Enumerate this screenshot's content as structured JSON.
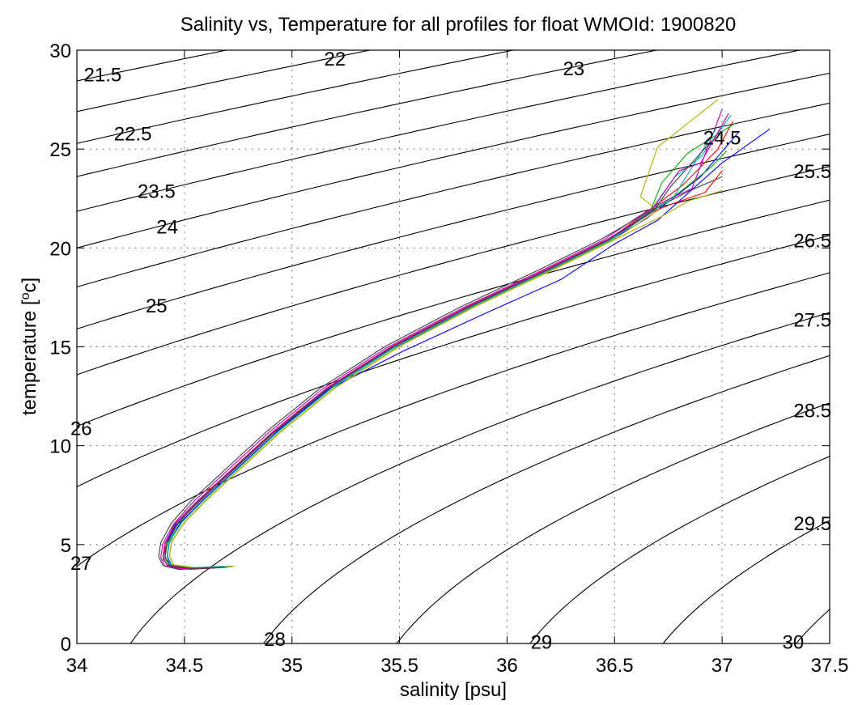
{
  "chart_data": {
    "type": "line",
    "title": "Salinity vs, Temperature for all profiles for float WMOId: 1900820",
    "xlabel": "salinity [psu]",
    "ylabel_base": "temperature [",
    "ylabel_sup": "o",
    "ylabel_tail": "c]",
    "xlim": [
      34,
      37.5
    ],
    "ylim": [
      0,
      30
    ],
    "xticks": [
      34,
      34.5,
      35,
      35.5,
      36,
      36.5,
      37,
      37.5
    ],
    "xtick_labels": [
      "34",
      "34.5",
      "35",
      "35.5",
      "36",
      "36.5",
      "37",
      "37.5"
    ],
    "yticks": [
      0,
      5,
      10,
      15,
      20,
      25,
      30
    ],
    "ytick_labels": [
      "0",
      "5",
      "10",
      "15",
      "20",
      "25",
      "30"
    ],
    "grid": true,
    "legend": "none",
    "density_contours": {
      "levels": [
        21.5,
        22,
        22.5,
        23,
        23.5,
        24,
        24.5,
        25,
        25.5,
        26,
        26.5,
        27,
        27.5,
        28,
        28.5,
        29,
        29.5,
        30
      ],
      "labels": [
        {
          "text": "21.5",
          "s": 34.12,
          "t": 28.8
        },
        {
          "text": "22",
          "s": 35.2,
          "t": 29.6
        },
        {
          "text": "23",
          "s": 36.31,
          "t": 29.1
        },
        {
          "text": "22.5",
          "s": 34.26,
          "t": 25.8
        },
        {
          "text": "24.5",
          "s": 37.0,
          "t": 25.6
        },
        {
          "text": "23.5",
          "s": 34.37,
          "t": 22.9
        },
        {
          "text": "25.5",
          "s": 37.42,
          "t": 23.9
        },
        {
          "text": "24",
          "s": 34.42,
          "t": 21.1
        },
        {
          "text": "26.5",
          "s": 37.42,
          "t": 20.4
        },
        {
          "text": "25",
          "s": 34.37,
          "t": 17.1
        },
        {
          "text": "27.5",
          "s": 37.42,
          "t": 16.4
        },
        {
          "text": "26",
          "s": 34.02,
          "t": 10.9
        },
        {
          "text": "28.5",
          "s": 37.42,
          "t": 11.8
        },
        {
          "text": "29.5",
          "s": 37.42,
          "t": 6.1
        },
        {
          "text": "27",
          "s": 34.02,
          "t": 4.1
        },
        {
          "text": "28",
          "s": 34.92,
          "t": 0.25
        },
        {
          "text": "29",
          "s": 36.16,
          "t": 0.1
        },
        {
          "text": "30",
          "s": 37.33,
          "t": 0.1
        }
      ]
    },
    "series": [
      {
        "color": "#0000ff",
        "points": [
          [
            34.72,
            3.9
          ],
          [
            34.55,
            3.8
          ],
          [
            34.45,
            3.9
          ],
          [
            34.41,
            4.3
          ],
          [
            34.41,
            5.0
          ],
          [
            34.46,
            6.0
          ],
          [
            34.55,
            7.0
          ],
          [
            34.7,
            8.5
          ],
          [
            34.9,
            10.5
          ],
          [
            35.15,
            12.7
          ],
          [
            35.45,
            14.8
          ],
          [
            35.8,
            16.8
          ],
          [
            36.15,
            18.6
          ],
          [
            36.45,
            20.2
          ],
          [
            36.65,
            21.5
          ],
          [
            36.9,
            23.6
          ],
          [
            37.08,
            25.9
          ]
        ]
      },
      {
        "color": "#00b000",
        "points": [
          [
            34.7,
            3.85
          ],
          [
            34.53,
            3.75
          ],
          [
            34.43,
            3.85
          ],
          [
            34.4,
            4.25
          ],
          [
            34.41,
            5.0
          ],
          [
            34.45,
            6.0
          ],
          [
            34.55,
            7.1
          ],
          [
            34.7,
            8.6
          ],
          [
            34.9,
            10.6
          ],
          [
            35.15,
            12.8
          ],
          [
            35.45,
            14.9
          ],
          [
            35.8,
            16.9
          ],
          [
            36.15,
            18.7
          ],
          [
            36.45,
            20.3
          ],
          [
            36.65,
            21.7
          ],
          [
            36.8,
            22.8
          ],
          [
            36.95,
            24.1
          ],
          [
            37.02,
            24.9
          ]
        ]
      },
      {
        "color": "#ff0000",
        "points": [
          [
            34.66,
            3.85
          ],
          [
            34.5,
            3.78
          ],
          [
            34.42,
            3.95
          ],
          [
            34.4,
            4.4
          ],
          [
            34.42,
            5.1
          ],
          [
            34.47,
            6.1
          ],
          [
            34.57,
            7.2
          ],
          [
            34.72,
            8.7
          ],
          [
            34.92,
            10.7
          ],
          [
            35.17,
            12.9
          ],
          [
            35.47,
            15.0
          ],
          [
            35.82,
            17.0
          ],
          [
            36.17,
            18.8
          ],
          [
            36.47,
            20.4
          ],
          [
            36.66,
            21.9
          ],
          [
            36.82,
            23.2
          ],
          [
            36.98,
            25.0
          ],
          [
            37.05,
            26.4
          ]
        ]
      },
      {
        "color": "#00b0b0",
        "points": [
          [
            34.68,
            3.9
          ],
          [
            34.52,
            3.82
          ],
          [
            34.43,
            4.0
          ],
          [
            34.42,
            4.5
          ],
          [
            34.43,
            5.2
          ],
          [
            34.49,
            6.2
          ],
          [
            34.59,
            7.3
          ],
          [
            34.74,
            8.8
          ],
          [
            34.94,
            10.8
          ],
          [
            35.19,
            13.0
          ],
          [
            35.49,
            15.1
          ],
          [
            35.84,
            17.1
          ],
          [
            36.19,
            18.9
          ],
          [
            36.49,
            20.5
          ],
          [
            36.68,
            22.0
          ],
          [
            36.78,
            23.6
          ],
          [
            36.9,
            24.6
          ],
          [
            37.04,
            26.7
          ]
        ]
      },
      {
        "color": "#c000c0",
        "points": [
          [
            34.64,
            3.82
          ],
          [
            34.49,
            3.76
          ],
          [
            34.41,
            3.9
          ],
          [
            34.39,
            4.35
          ],
          [
            34.4,
            5.05
          ],
          [
            34.45,
            6.05
          ],
          [
            34.54,
            7.15
          ],
          [
            34.69,
            8.65
          ],
          [
            34.89,
            10.65
          ],
          [
            35.14,
            12.85
          ],
          [
            35.44,
            14.95
          ],
          [
            35.79,
            16.95
          ],
          [
            36.14,
            18.75
          ],
          [
            36.44,
            20.35
          ],
          [
            36.64,
            21.8
          ],
          [
            36.74,
            22.4
          ],
          [
            36.86,
            23.0
          ],
          [
            37.0,
            27.0
          ]
        ]
      },
      {
        "color": "#b0b000",
        "points": [
          [
            34.73,
            3.9
          ],
          [
            34.56,
            3.83
          ],
          [
            34.45,
            3.98
          ],
          [
            34.43,
            4.45
          ],
          [
            34.44,
            5.15
          ],
          [
            34.5,
            6.15
          ],
          [
            34.6,
            7.25
          ],
          [
            34.75,
            8.75
          ],
          [
            34.95,
            10.75
          ],
          [
            35.2,
            12.95
          ],
          [
            35.5,
            15.05
          ],
          [
            35.85,
            17.05
          ],
          [
            36.2,
            18.85
          ],
          [
            36.5,
            20.45
          ],
          [
            36.7,
            21.9
          ],
          [
            36.62,
            22.6
          ],
          [
            36.7,
            25.1
          ],
          [
            36.98,
            27.5
          ]
        ]
      },
      {
        "color": "#404040",
        "points": [
          [
            34.62,
            3.8
          ],
          [
            34.47,
            3.75
          ],
          [
            34.4,
            3.95
          ],
          [
            34.38,
            4.4
          ],
          [
            34.39,
            5.1
          ],
          [
            34.44,
            6.1
          ],
          [
            34.53,
            7.2
          ],
          [
            34.68,
            8.7
          ],
          [
            34.88,
            10.7
          ],
          [
            35.13,
            12.9
          ],
          [
            35.43,
            15.0
          ],
          [
            35.78,
            17.0
          ],
          [
            36.13,
            18.8
          ],
          [
            36.43,
            20.4
          ],
          [
            36.62,
            21.6
          ],
          [
            36.85,
            22.9
          ],
          [
            37.0,
            23.6
          ]
        ]
      },
      {
        "color": "#0000ff",
        "points": [
          [
            34.7,
            3.88
          ],
          [
            34.54,
            3.8
          ],
          [
            34.44,
            3.95
          ],
          [
            34.42,
            4.4
          ],
          [
            34.43,
            5.1
          ],
          [
            34.48,
            6.1
          ],
          [
            34.58,
            7.2
          ],
          [
            34.73,
            8.7
          ],
          [
            34.93,
            10.7
          ],
          [
            35.18,
            12.9
          ],
          [
            35.52,
            14.8
          ],
          [
            35.9,
            16.7
          ],
          [
            36.25,
            18.4
          ],
          [
            36.5,
            20.2
          ],
          [
            36.7,
            21.4
          ],
          [
            37.0,
            24.3
          ],
          [
            37.22,
            26.0
          ]
        ]
      },
      {
        "color": "#00b000",
        "points": [
          [
            34.69,
            3.86
          ],
          [
            34.52,
            3.79
          ],
          [
            34.43,
            3.92
          ],
          [
            34.41,
            4.35
          ],
          [
            34.42,
            5.05
          ],
          [
            34.47,
            6.05
          ],
          [
            34.56,
            7.15
          ],
          [
            34.71,
            8.65
          ],
          [
            34.91,
            10.65
          ],
          [
            35.16,
            12.85
          ],
          [
            35.46,
            14.95
          ],
          [
            35.81,
            16.95
          ],
          [
            36.16,
            18.75
          ],
          [
            36.46,
            20.35
          ],
          [
            36.66,
            21.7
          ],
          [
            36.72,
            23.3
          ],
          [
            36.84,
            24.8
          ],
          [
            37.06,
            26.3
          ]
        ]
      },
      {
        "color": "#ff0000",
        "points": [
          [
            34.67,
            3.85
          ],
          [
            34.51,
            3.78
          ],
          [
            34.42,
            3.95
          ],
          [
            34.4,
            4.4
          ],
          [
            34.41,
            5.1
          ],
          [
            34.46,
            6.1
          ],
          [
            34.56,
            7.2
          ],
          [
            34.71,
            8.7
          ],
          [
            34.91,
            10.7
          ],
          [
            35.16,
            12.9
          ],
          [
            35.46,
            15.0
          ],
          [
            35.81,
            17.0
          ],
          [
            36.16,
            18.8
          ],
          [
            36.46,
            20.4
          ],
          [
            36.67,
            21.8
          ],
          [
            36.76,
            22.2
          ],
          [
            36.92,
            22.8
          ],
          [
            37.0,
            23.9
          ]
        ]
      },
      {
        "color": "#00b0b0",
        "points": [
          [
            34.71,
            3.9
          ],
          [
            34.54,
            3.83
          ],
          [
            34.44,
            3.98
          ],
          [
            34.42,
            4.45
          ],
          [
            34.43,
            5.15
          ],
          [
            34.49,
            6.15
          ],
          [
            34.59,
            7.25
          ],
          [
            34.74,
            8.75
          ],
          [
            34.94,
            10.75
          ],
          [
            35.19,
            12.95
          ],
          [
            35.49,
            15.05
          ],
          [
            35.84,
            17.05
          ],
          [
            36.19,
            18.85
          ],
          [
            36.49,
            20.45
          ],
          [
            36.69,
            21.95
          ],
          [
            36.77,
            22.5
          ],
          [
            36.97,
            26.0
          ]
        ]
      },
      {
        "color": "#c000c0",
        "points": [
          [
            34.65,
            3.83
          ],
          [
            34.5,
            3.77
          ],
          [
            34.42,
            3.92
          ],
          [
            34.4,
            4.38
          ],
          [
            34.41,
            5.08
          ],
          [
            34.46,
            6.08
          ],
          [
            34.56,
            7.18
          ],
          [
            34.71,
            8.68
          ],
          [
            34.91,
            10.68
          ],
          [
            35.16,
            12.88
          ],
          [
            35.46,
            14.98
          ],
          [
            35.81,
            16.98
          ],
          [
            36.16,
            18.78
          ],
          [
            36.46,
            20.38
          ],
          [
            36.66,
            21.75
          ],
          [
            36.8,
            23.9
          ],
          [
            36.9,
            24.3
          ],
          [
            37.03,
            26.8
          ]
        ]
      },
      {
        "color": "#b0b000",
        "points": [
          [
            34.72,
            3.88
          ],
          [
            34.55,
            3.81
          ],
          [
            34.45,
            3.96
          ],
          [
            34.43,
            4.42
          ],
          [
            34.44,
            5.12
          ],
          [
            34.5,
            6.12
          ],
          [
            34.6,
            7.22
          ],
          [
            34.75,
            8.72
          ],
          [
            34.95,
            10.72
          ],
          [
            35.2,
            12.92
          ],
          [
            35.5,
            15.02
          ],
          [
            35.85,
            17.02
          ],
          [
            36.2,
            18.82
          ],
          [
            36.5,
            20.42
          ],
          [
            36.72,
            21.6
          ],
          [
            36.85,
            22.4
          ],
          [
            37.0,
            22.9
          ]
        ]
      },
      {
        "color": "#404040",
        "points": [
          [
            34.69,
            3.87
          ],
          [
            34.53,
            3.8
          ],
          [
            34.43,
            3.95
          ],
          [
            34.41,
            4.4
          ],
          [
            34.42,
            5.1
          ],
          [
            34.47,
            6.1
          ],
          [
            34.57,
            7.2
          ],
          [
            34.72,
            8.7
          ],
          [
            34.92,
            10.7
          ],
          [
            35.17,
            12.9
          ],
          [
            35.47,
            15.0
          ],
          [
            35.82,
            17.0
          ],
          [
            36.17,
            18.8
          ],
          [
            36.47,
            20.4
          ],
          [
            36.68,
            21.85
          ],
          [
            36.76,
            23.1
          ],
          [
            36.95,
            25.4
          ]
        ]
      }
    ]
  }
}
